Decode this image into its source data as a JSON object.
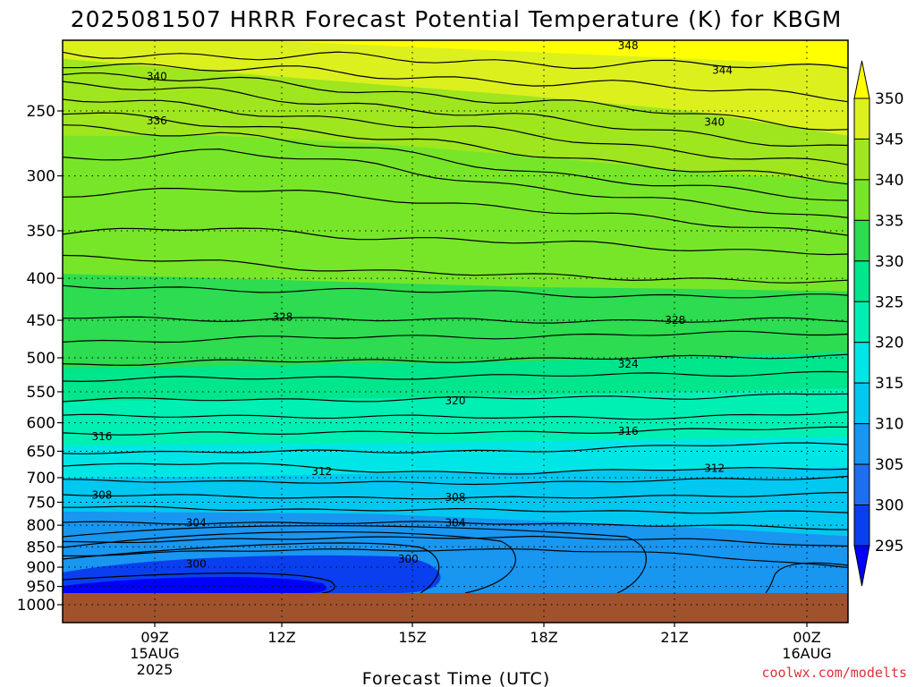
{
  "title": "2025081507 HRRR Forecast Potential Temperature (K) for KBGM",
  "credit": "coolwx.com/modelts",
  "colors": {
    "ground": "#a0522d",
    "fills": [
      "#0000ff",
      "#0a3ff0",
      "#1e6ef0",
      "#1896f0",
      "#00c8f0",
      "#00e6e6",
      "#00f0b4",
      "#00e68c",
      "#2ddc50",
      "#78e628",
      "#a0e61e",
      "#dcf01e",
      "#ffff00"
    ]
  },
  "chart_data": {
    "type": "heatmap",
    "title": "2025081507 HRRR Forecast Potential Temperature (K) for KBGM",
    "xlabel": "Forecast Time (UTC)",
    "ylabel": "",
    "y_scale": "log-pressure",
    "y_ticks": [
      "250",
      "300",
      "350",
      "400",
      "450",
      "500",
      "550",
      "600",
      "650",
      "700",
      "750",
      "800",
      "850",
      "900",
      "950",
      "1000"
    ],
    "x_ticks": [
      {
        "label": "09Z",
        "sub1": "15AUG",
        "sub2": "2025"
      },
      {
        "label": "12Z",
        "sub1": "",
        "sub2": ""
      },
      {
        "label": "15Z",
        "sub1": "",
        "sub2": ""
      },
      {
        "label": "18Z",
        "sub1": "",
        "sub2": ""
      },
      {
        "label": "21Z",
        "sub1": "",
        "sub2": ""
      },
      {
        "label": "00Z",
        "sub1": "16AUG",
        "sub2": ""
      }
    ],
    "colorbar": {
      "levels": [
        "295",
        "300",
        "305",
        "310",
        "315",
        "320",
        "325",
        "330",
        "335",
        "340",
        "345",
        "350"
      ]
    },
    "contour_labels": [
      {
        "text": "348",
        "p": 208,
        "t": 0.72
      },
      {
        "text": "344",
        "p": 223,
        "t": 0.84
      },
      {
        "text": "340",
        "p": 227,
        "t": 0.12
      },
      {
        "text": "340",
        "p": 258,
        "t": 0.83
      },
      {
        "text": "336",
        "p": 257,
        "t": 0.12
      },
      {
        "text": "328",
        "p": 446,
        "t": 0.28
      },
      {
        "text": "328",
        "p": 450,
        "t": 0.78
      },
      {
        "text": "324",
        "p": 509,
        "t": 0.72
      },
      {
        "text": "320",
        "p": 564,
        "t": 0.5
      },
      {
        "text": "316",
        "p": 624,
        "t": 0.05
      },
      {
        "text": "316",
        "p": 614,
        "t": 0.72
      },
      {
        "text": "312",
        "p": 688,
        "t": 0.33
      },
      {
        "text": "312",
        "p": 682,
        "t": 0.83
      },
      {
        "text": "308",
        "p": 735,
        "t": 0.05
      },
      {
        "text": "308",
        "p": 740,
        "t": 0.5
      },
      {
        "text": "304",
        "p": 795,
        "t": 0.17
      },
      {
        "text": "304",
        "p": 795,
        "t": 0.5
      },
      {
        "text": "300",
        "p": 892,
        "t": 0.17
      },
      {
        "text": "300",
        "p": 880,
        "t": 0.44
      }
    ]
  }
}
